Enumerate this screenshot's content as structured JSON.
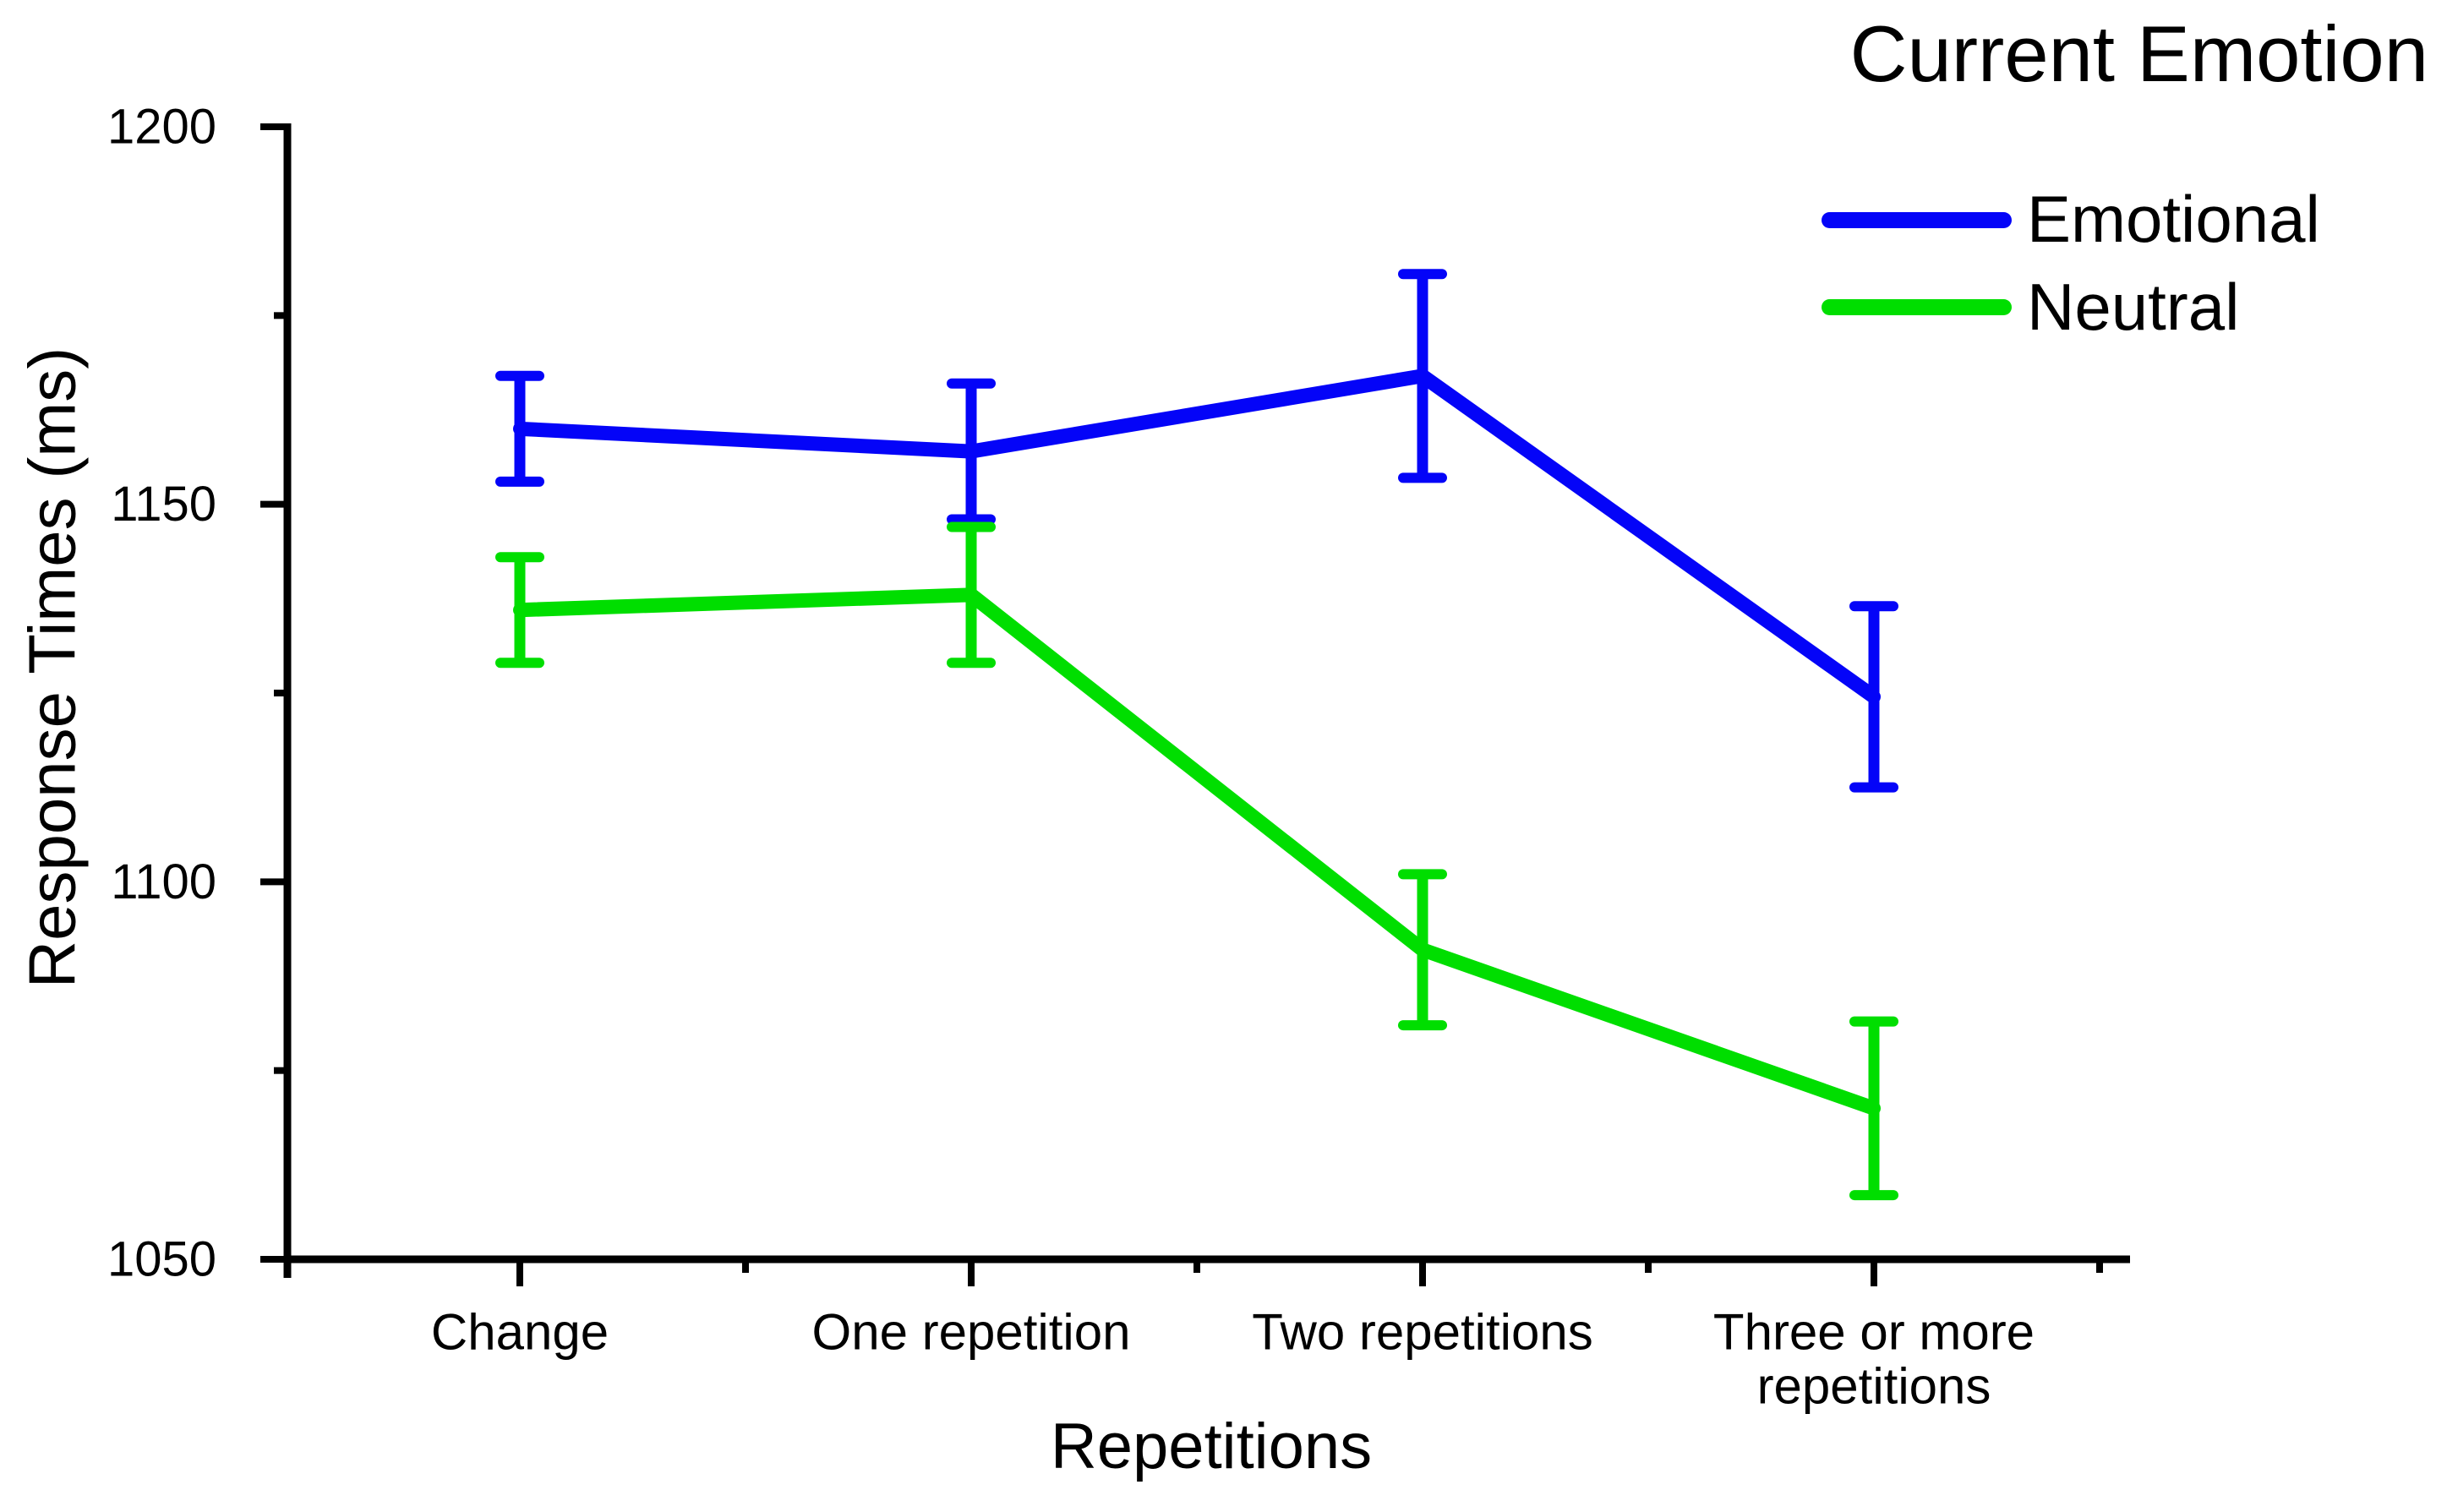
{
  "page": {
    "background": "#ffffff"
  },
  "chart_data": {
    "type": "line",
    "title": "",
    "xlabel": "Repetitions",
    "ylabel": "Response Times (ms)",
    "ylim": [
      1050,
      1200
    ],
    "y_major_ticks": [
      1050,
      1100,
      1150,
      1200
    ],
    "y_minor_ticks": [
      1075,
      1125,
      1175
    ],
    "categories": [
      "Change",
      "One repetition",
      "Two repetitions",
      "Three or more\nrepetitions"
    ],
    "grid": false,
    "legend": {
      "title": "Current Emotion",
      "position": "top-right"
    },
    "axis_color": "#000000",
    "series": [
      {
        "name": "Emotional",
        "color": "#0404f8",
        "values": [
          1160,
          1157,
          1167,
          1124.5
        ],
        "errors": [
          7,
          9,
          13.5,
          12
        ]
      },
      {
        "name": "Neutral",
        "color": "#00de00",
        "values": [
          1136,
          1138,
          1091,
          1070
        ],
        "errors": [
          7,
          9,
          10,
          11.5
        ]
      }
    ]
  }
}
